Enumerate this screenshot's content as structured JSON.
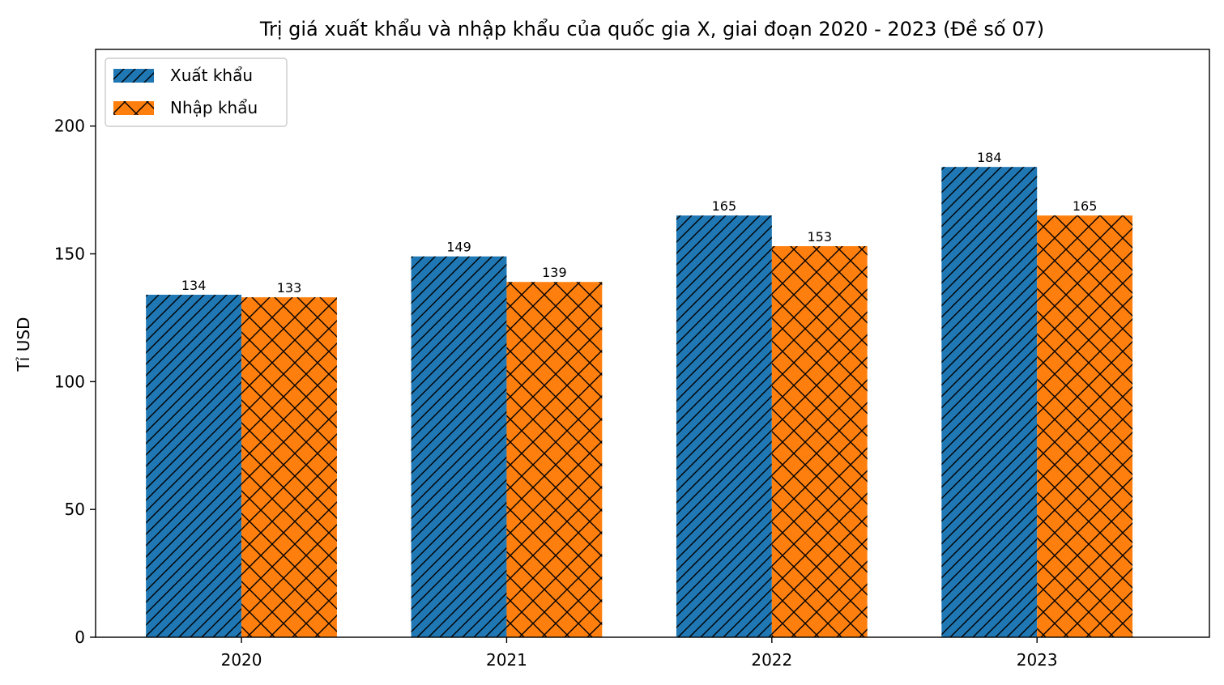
{
  "chart_data": {
    "type": "bar",
    "title": "Trị giá xuất khẩu và nhập khẩu của quốc gia X, giai đoạn 2020 - 2023 (Đề số 07)",
    "xlabel": "",
    "ylabel": "Tỉ USD",
    "categories": [
      "2020",
      "2021",
      "2022",
      "2023"
    ],
    "series": [
      {
        "name": "Xuất khẩu",
        "values": [
          134,
          149,
          165,
          184
        ],
        "color": "#1f77b4",
        "hatch": "diagonal"
      },
      {
        "name": "Nhập khẩu",
        "values": [
          133,
          139,
          153,
          165
        ],
        "color": "#ff7f0e",
        "hatch": "cross"
      }
    ],
    "ylim": [
      0,
      230
    ],
    "yticks": [
      0,
      50,
      100,
      150,
      200
    ],
    "grid": false,
    "legend_position": "top-left"
  }
}
